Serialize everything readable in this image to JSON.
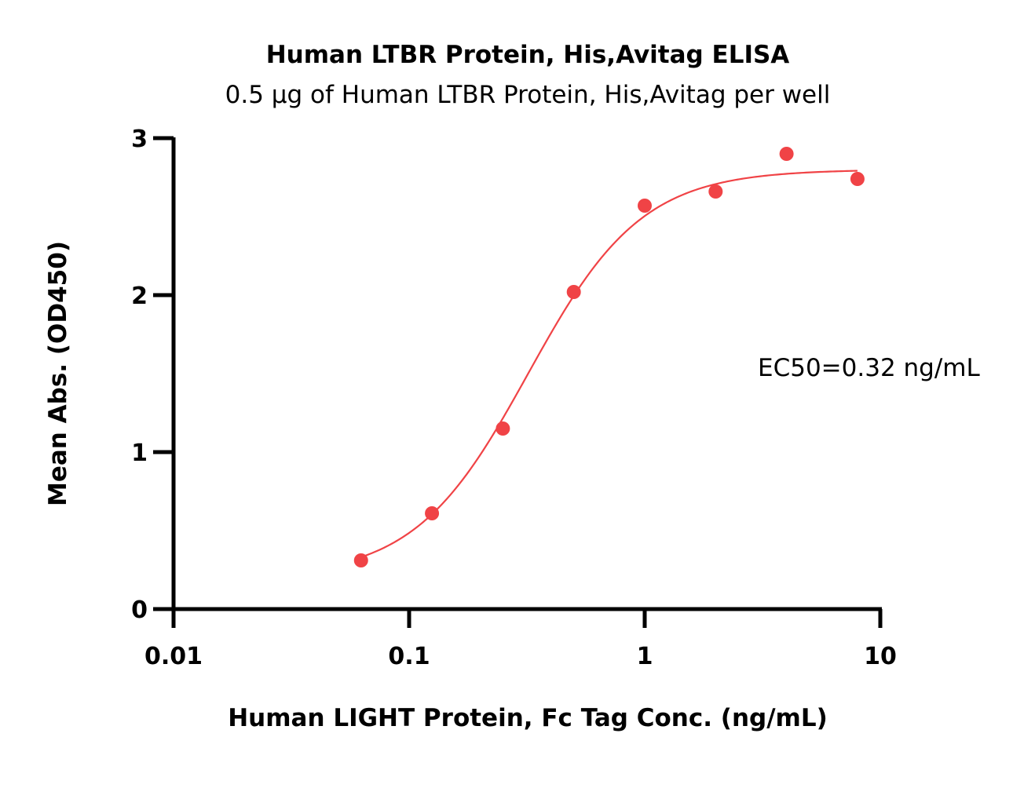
{
  "chart_data": {
    "type": "scatter",
    "title": "Human LTBR Protein, His,Avitag ELISA",
    "subtitle": "0.5 µg of Human LTBR Protein, His,Avitag per well",
    "xlabel": "Human LIGHT Protein, Fc Tag Conc. (ng/mL)",
    "ylabel": "Mean Abs. (OD450)",
    "x_scale": "log",
    "xlim": [
      0.01,
      10
    ],
    "ylim": [
      0,
      3
    ],
    "x_ticks": [
      "0.01",
      "0.1",
      "1",
      "10"
    ],
    "y_ticks": [
      "0",
      "1",
      "2",
      "3"
    ],
    "series": [
      {
        "x": [
          0.0625,
          0.125,
          0.25,
          0.5,
          1,
          2,
          4,
          8
        ],
        "y": [
          0.31,
          0.61,
          1.15,
          2.02,
          2.57,
          2.66,
          2.9,
          2.74
        ]
      }
    ],
    "fit": {
      "bottom": 0.2,
      "top": 2.8,
      "ec50": 0.32,
      "hill": 1.8,
      "x_range": [
        0.0625,
        8
      ]
    },
    "annotation": "EC50=0.32 ng/mL",
    "color": "#f04346",
    "grid": false,
    "legend": "none"
  }
}
